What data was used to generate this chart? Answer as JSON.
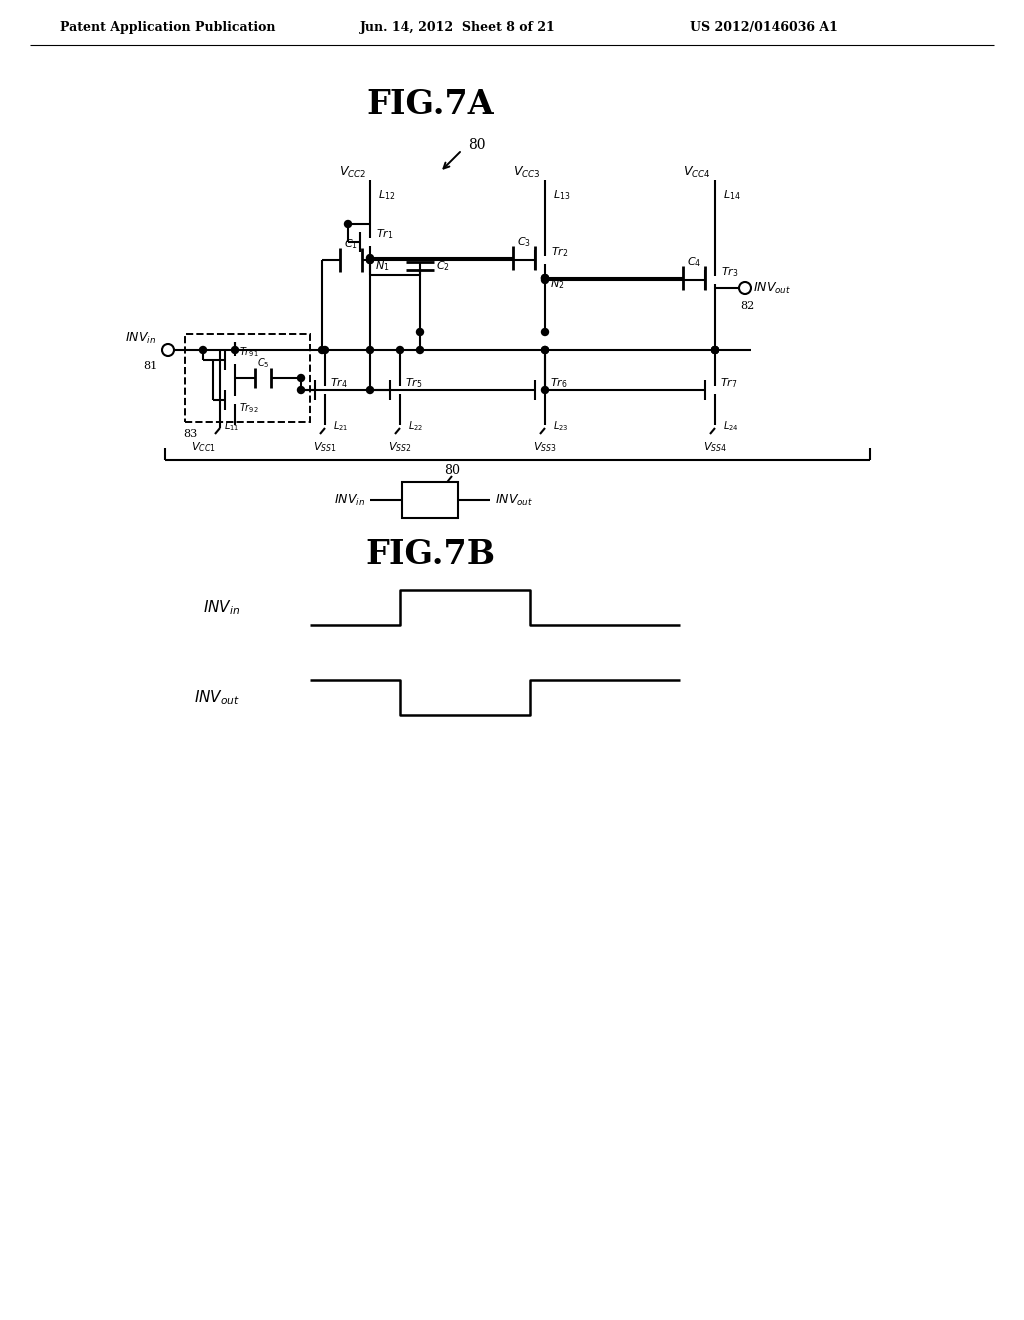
{
  "bg_color": "#ffffff",
  "header_left": "Patent Application Publication",
  "header_center": "Jun. 14, 2012  Sheet 8 of 21",
  "header_right": "US 2012/0146036 A1",
  "line_color": "#000000",
  "lw": 1.5
}
